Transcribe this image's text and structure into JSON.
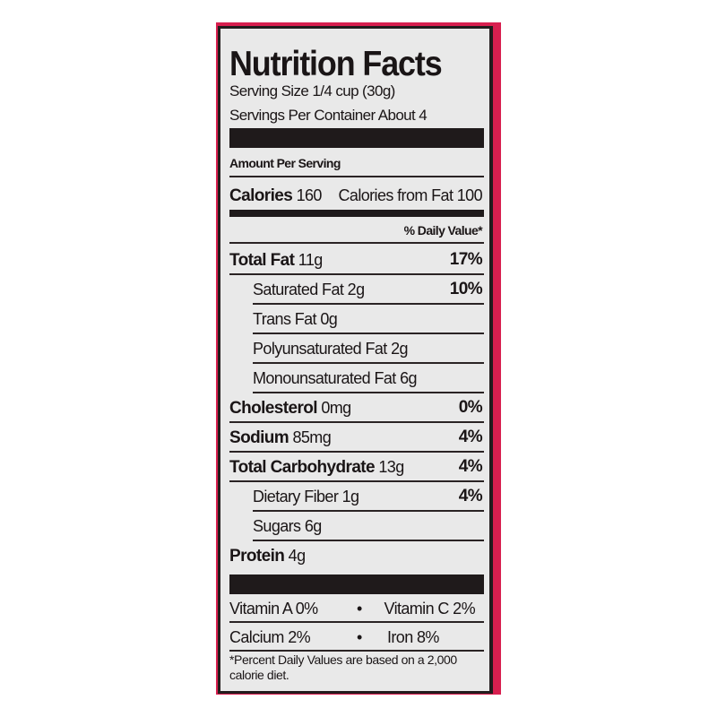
{
  "title": "Nutrition Facts",
  "serving_size": "Serving Size 1/4 cup (30g)",
  "servings_per_container": "Servings Per Container About 4",
  "amount_per_serving": "Amount Per Serving",
  "calories": {
    "label": "Calories",
    "value": "160",
    "from_fat": "Calories from Fat 100"
  },
  "daily_value_header": "% Daily Value*",
  "nutrients": [
    {
      "name": "Total Fat",
      "amount": "11g",
      "dv": "17%",
      "bold": true,
      "indent": false
    },
    {
      "name": "Saturated Fat",
      "amount": "2g",
      "dv": "10%",
      "bold": false,
      "indent": true
    },
    {
      "name": "Trans Fat",
      "amount": "0g",
      "dv": "",
      "bold": false,
      "indent": true
    },
    {
      "name": "Polyunsaturated Fat",
      "amount": "2g",
      "dv": "",
      "bold": false,
      "indent": true
    },
    {
      "name": "Monounsaturated Fat",
      "amount": "6g",
      "dv": "",
      "bold": false,
      "indent": true
    },
    {
      "name": "Cholesterol",
      "amount": "0mg",
      "dv": "0%",
      "bold": true,
      "indent": false
    },
    {
      "name": "Sodium",
      "amount": "85mg",
      "dv": "4%",
      "bold": true,
      "indent": false
    },
    {
      "name": "Total Carbohydrate",
      "amount": "13g",
      "dv": "4%",
      "bold": true,
      "indent": false
    },
    {
      "name": "Dietary Fiber",
      "amount": "1g",
      "dv": "4%",
      "bold": false,
      "indent": true
    },
    {
      "name": "Sugars",
      "amount": "6g",
      "dv": "",
      "bold": false,
      "indent": true
    },
    {
      "name": "Protein",
      "amount": "4g",
      "dv": "",
      "bold": true,
      "indent": false
    }
  ],
  "vitamins": [
    {
      "left": "Vitamin A 0%",
      "right": "Vitamin C 2%"
    },
    {
      "left": "Calcium 2%",
      "right": "Iron 8%"
    }
  ],
  "separator": "•",
  "footnote": [
    "*Percent Daily Values are based on a 2,000",
    "calorie diet."
  ],
  "colors": {
    "packaging": "#d81f4f",
    "label_bg": "#e9e9e9",
    "ink": "#1a1516"
  }
}
